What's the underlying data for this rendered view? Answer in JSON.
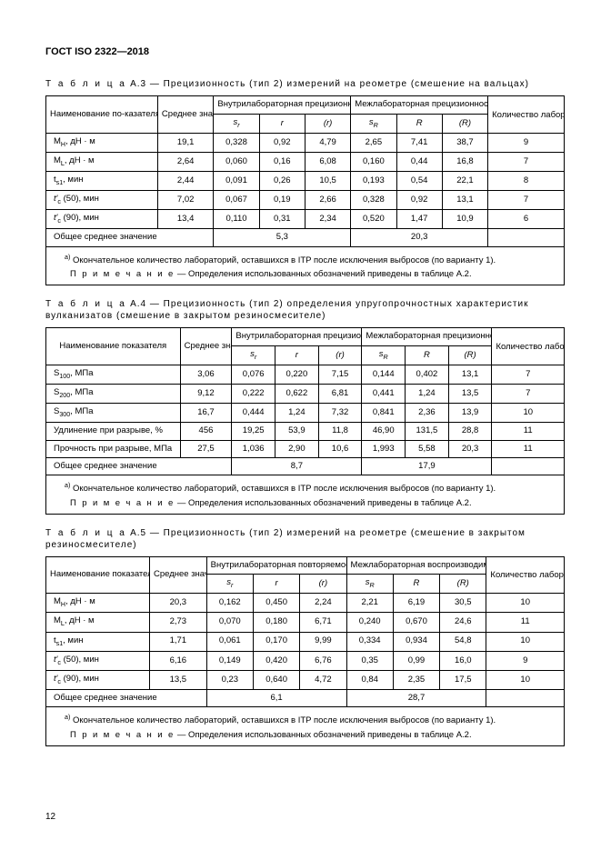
{
  "docId": "ГОСТ ISO 2322—2018",
  "pageNumber": "12",
  "tableA3": {
    "caption_prefix": "Т а б л и ц а",
    "caption": "А.3 — Прецизионность (тип 2) измерений на реометре (смешение на вальцах)",
    "hdr_name": "Наименование по-казателя",
    "hdr_mean": "Cреднее значение",
    "hdr_intra": "Внутрилабораторная прецизионность",
    "hdr_inter": "Межлабораторная прецизионность",
    "hdr_labs": "Количество лабораторий",
    "sup_a": "a)",
    "sub_sr": "s",
    "sub_sr_i": "r",
    "sub_r": "r",
    "sub_rp": "(r)",
    "sub_sR": "s",
    "sub_sR_i": "R",
    "sub_R": "R",
    "sub_Rp": "(R)",
    "rows": [
      {
        "n": "M_H, дН · м",
        "mean": "19,1",
        "sr": "0,328",
        "r": "0,92",
        "rp": "4,79",
        "sR": "2,65",
        "R": "7,41",
        "Rp": "38,7",
        "labs": "9"
      },
      {
        "n": "M_L, дН · м",
        "mean": "2,64",
        "sr": "0,060",
        "r": "0,16",
        "rp": "6,08",
        "sR": "0,160",
        "R": "0,44",
        "Rp": "16,8",
        "labs": "7"
      },
      {
        "n": "t_s1, мин",
        "mean": "2,44",
        "sr": "0,091",
        "r": "0,26",
        "rp": "10,5",
        "sR": "0,193",
        "R": "0,54",
        "Rp": "22,1",
        "labs": "8"
      },
      {
        "n": "t'_c (50), мин",
        "mean": "7,02",
        "sr": "0,067",
        "r": "0,19",
        "rp": "2,66",
        "sR": "0,328",
        "R": "0,92",
        "Rp": "13,1",
        "labs": "7"
      },
      {
        "n": "t'_c (90), мин",
        "mean": "13,4",
        "sr": "0,110",
        "r": "0,31",
        "rp": "2,34",
        "sR": "0,520",
        "R": "1,47",
        "Rp": "10,9",
        "labs": "6"
      }
    ],
    "overall_label": "Общее среднее значение",
    "overall_intra": "5,3",
    "overall_inter": "20,3",
    "footnote": "Окончательное количество лабораторий, оставшихся в ITP после исключения выбросов (по варианту 1).",
    "note_prefix": "П р и м е ч а н и е",
    "note": "— Определения использованных обозначений приведены в таблице А.2."
  },
  "tableA4": {
    "caption_prefix": "Т а б л и ц а",
    "caption": "А.4 — Прецизионность (тип 2) определения упругопрочностных характеристик вулканизатов (смешение в закрытом резиносмесителе)",
    "hdr_name": "Наименование показателя",
    "rows": [
      {
        "n": "S_100, МПа",
        "mean": "3,06",
        "sr": "0,076",
        "r": "0,220",
        "rp": "7,15",
        "sR": "0,144",
        "R": "0,402",
        "Rp": "13,1",
        "labs": "7"
      },
      {
        "n": "S_200, МПа",
        "mean": "9,12",
        "sr": "0,222",
        "r": "0,622",
        "rp": "6,81",
        "sR": "0,441",
        "R": "1,24",
        "Rp": "13,5",
        "labs": "7"
      },
      {
        "n": "S_300, МПа",
        "mean": "16,7",
        "sr": "0,444",
        "r": "1,24",
        "rp": "7,32",
        "sR": "0,841",
        "R": "2,36",
        "Rp": "13,9",
        "labs": "10"
      },
      {
        "n": "Удлинение при разрыве, %",
        "mean": "456",
        "sr": "19,25",
        "r": "53,9",
        "rp": "11,8",
        "sR": "46,90",
        "R": "131,5",
        "Rp": "28,8",
        "labs": "11"
      },
      {
        "n": "Прочность при разрыве, МПа",
        "mean": "27,5",
        "sr": "1,036",
        "r": "2,90",
        "rp": "10,6",
        "sR": "1,993",
        "R": "5,58",
        "Rp": "20,3",
        "labs": "11"
      }
    ],
    "overall_intra": "8,7",
    "overall_inter": "17,9"
  },
  "tableA5": {
    "caption_prefix": "Т а б л и ц а",
    "caption": "А.5 — Прецизионность (тип 2) измерений на реометре (смешение в закрытом резиносмесителе)",
    "hdr_name": "Наименование показателя",
    "hdr_intra": "Внутрилабораторная повторяемость",
    "hdr_inter": "Межлабораторная воспроизводимость",
    "rows": [
      {
        "n": "M_H, дН · м",
        "mean": "20,3",
        "sr": "0,162",
        "r": "0,450",
        "rp": "2,24",
        "sR": "2,21",
        "R": "6,19",
        "Rp": "30,5",
        "labs": "10"
      },
      {
        "n": "M_L, дН · м",
        "mean": "2,73",
        "sr": "0,070",
        "r": "0,180",
        "rp": "6,71",
        "sR": "0,240",
        "R": "0,670",
        "Rp": "24,6",
        "labs": "11"
      },
      {
        "n": "t_s1, мин",
        "mean": "1,71",
        "sr": "0,061",
        "r": "0,170",
        "rp": "9,99",
        "sR": "0,334",
        "R": "0,934",
        "Rp": "54,8",
        "labs": "10"
      },
      {
        "n": "t'_c (50), мин",
        "mean": "6,16",
        "sr": "0,149",
        "r": "0,420",
        "rp": "6,76",
        "sR": "0,35",
        "R": "0,99",
        "Rp": "16,0",
        "labs": "9"
      },
      {
        "n": "t'_c (90), мин",
        "mean": "13,5",
        "sr": "0,23",
        "r": "0,640",
        "rp": "4,72",
        "sR": "0,84",
        "R": "2,35",
        "Rp": "17,5",
        "labs": "10"
      }
    ],
    "overall_intra": "6,1",
    "overall_inter": "28,7"
  },
  "colwidths": {
    "name": "110px",
    "mean": "55px",
    "sr": "45px",
    "r": "45px",
    "rp": "45px",
    "sR": "45px",
    "R": "45px",
    "Rp": "45px",
    "labs": "75px"
  }
}
